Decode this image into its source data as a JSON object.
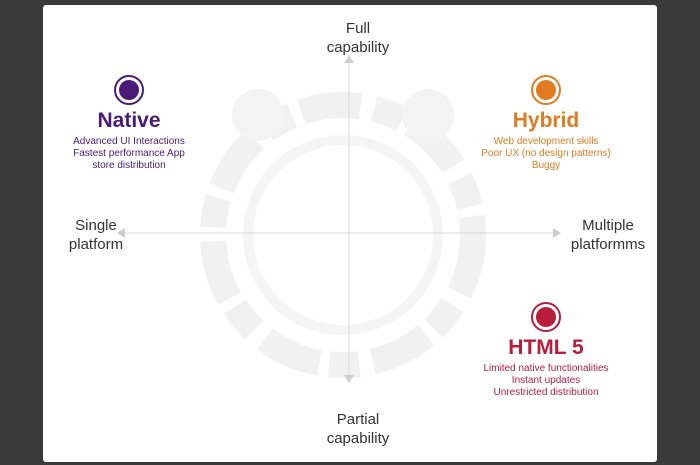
{
  "axes": {
    "top": "Full\ncapability",
    "bottom": "Partial\ncapability",
    "left": "Single\nplatform",
    "right": "Multiple\nplatformms"
  },
  "quadrants": [
    {
      "key": "native",
      "title": "Native",
      "color": "#4b1a78",
      "description": "Advanced UI Interactions\nFastest performance App\nstore distribution"
    },
    {
      "key": "hybrid",
      "title": "Hybrid",
      "color": "#e07b22",
      "description": "Web development skills\nPoor UX (no design patterns)\nBuggy"
    },
    {
      "key": "html5",
      "title": "HTML 5",
      "color": "#b81e3c",
      "description": "Limited native functionalities\nInstant updates\nUnrestricted distribution"
    }
  ],
  "colors": {
    "axis_line": "#d9d9d9",
    "axis_arrow": "#cfcfcf",
    "watermark": "#f2f2f2"
  }
}
